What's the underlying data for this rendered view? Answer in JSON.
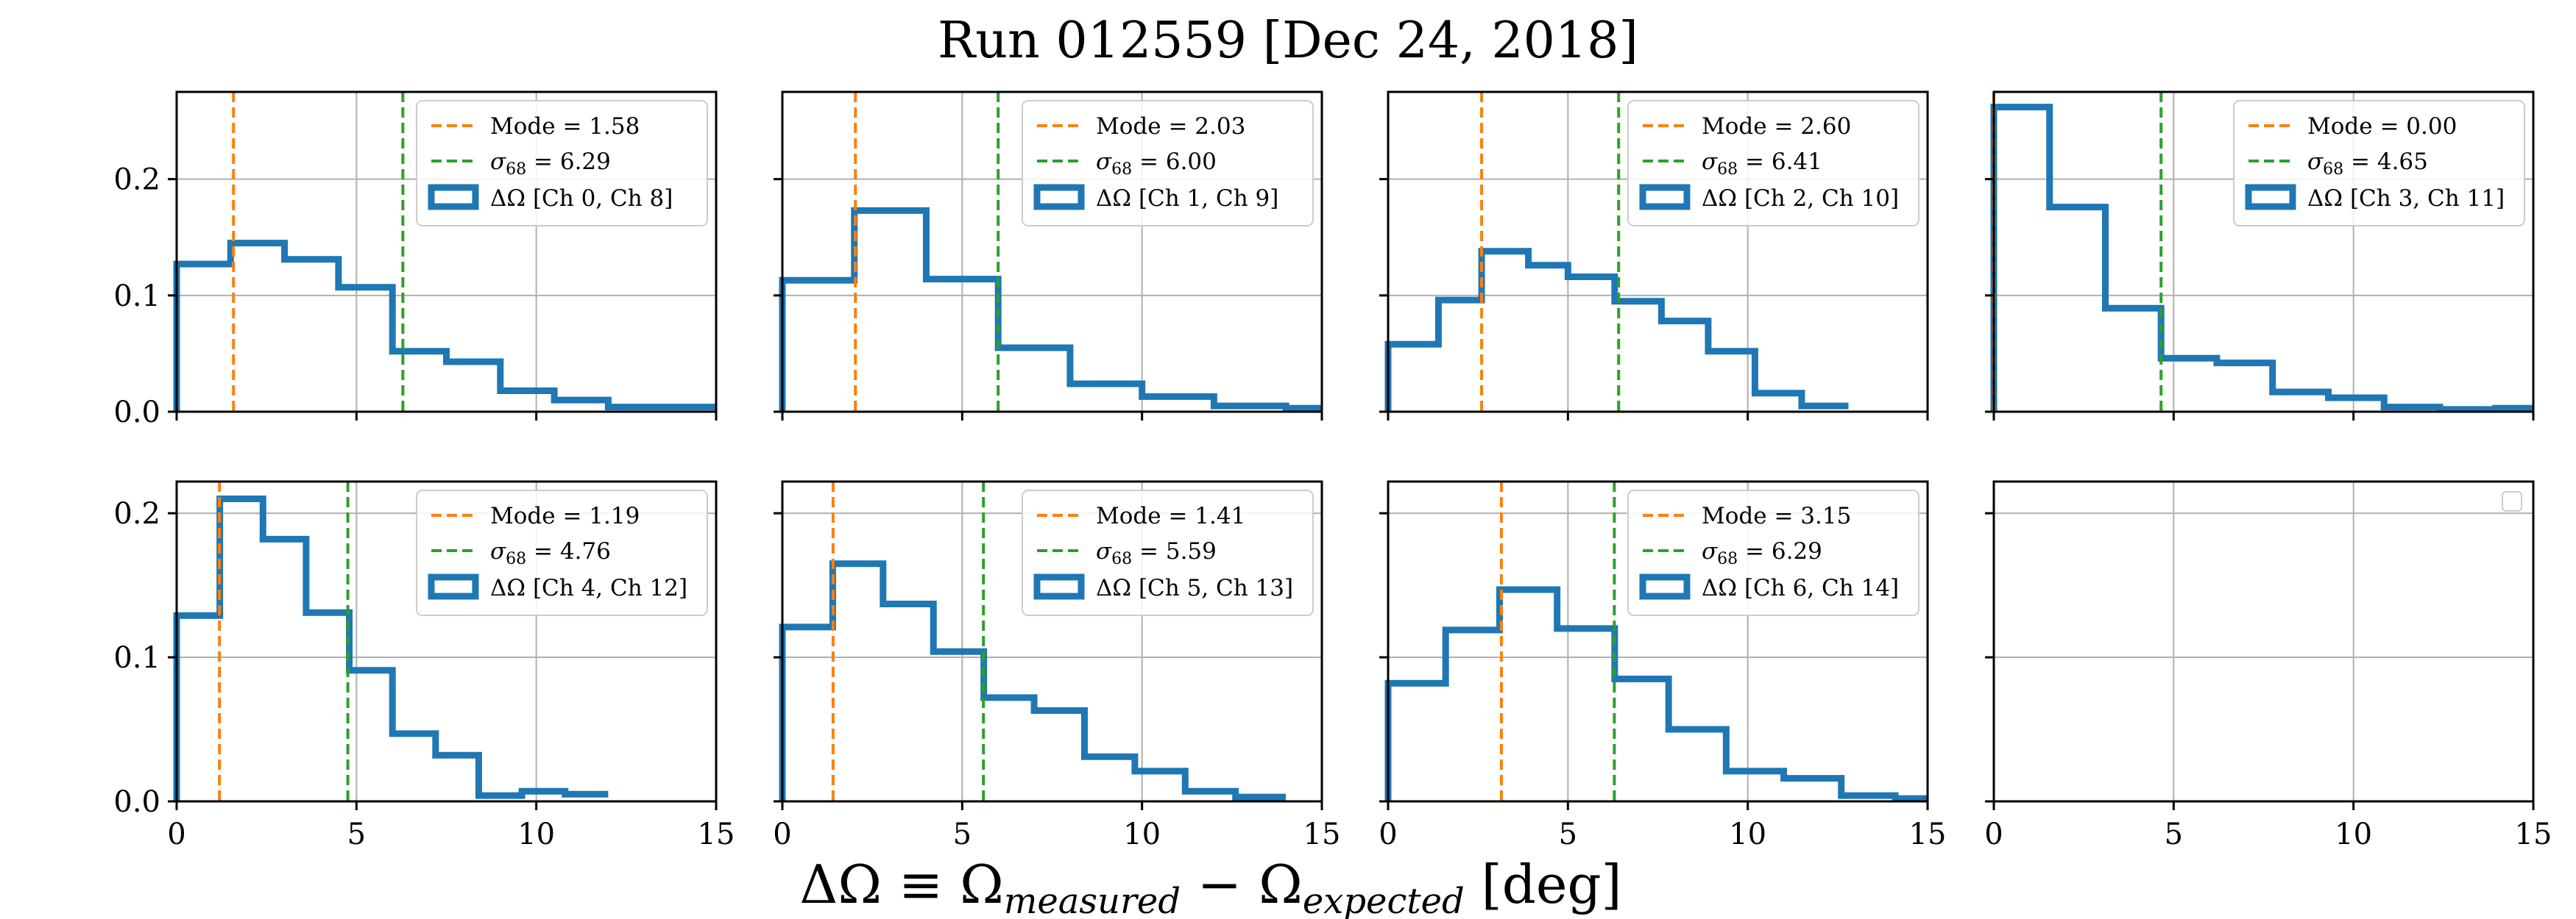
{
  "figure": {
    "title": "Run 012559 [Dec 24, 2018]",
    "xlabel": "ΔΩ ≡ Ω_measured − Ω_expected [deg]",
    "xlabel_parts": {
      "lhs": "ΔΩ ≡ Ω",
      "sub1": "measured",
      "mid": " − Ω",
      "sub2": "expected",
      "unit": " [deg]"
    }
  },
  "colors": {
    "histogram": "#1f77b4",
    "mode_line": "#ff7f0e",
    "sigma_line": "#2ca02c",
    "grid": "#b0b0b0"
  },
  "chart_data": [
    {
      "type": "histogram",
      "row": 0,
      "col": 0,
      "series_name": "ΔΩ [Ch 0, Ch 8]",
      "bin_edges": [
        0,
        1.5,
        3.0,
        4.5,
        6.0,
        7.5,
        9.0,
        10.5,
        12.0,
        13.5,
        15.0
      ],
      "values": [
        0.127,
        0.145,
        0.131,
        0.107,
        0.052,
        0.043,
        0.018,
        0.01,
        0.004,
        0.004
      ],
      "mode": 1.58,
      "sigma68": 6.29,
      "mode_label": "Mode = 1.58",
      "sigma_label": "σ68 = 6.29",
      "xlim": [
        0,
        15
      ],
      "ylim": [
        0,
        0.275
      ],
      "yticks": [
        0.0,
        0.1,
        0.2
      ],
      "ytick_labels": [
        "0.0",
        "0.1",
        "0.2"
      ],
      "xticks": [
        0,
        5,
        10,
        15
      ],
      "xtick_labels": []
    },
    {
      "type": "histogram",
      "row": 0,
      "col": 1,
      "series_name": "ΔΩ [Ch 1, Ch 9]",
      "bin_edges": [
        0,
        2.0,
        4.0,
        6.0,
        8.0,
        10.0,
        12.0,
        14.0,
        15.0
      ],
      "values": [
        0.113,
        0.173,
        0.114,
        0.055,
        0.024,
        0.013,
        0.005,
        0.003
      ],
      "mode": 2.03,
      "sigma68": 6.0,
      "mode_label": "Mode = 2.03",
      "sigma_label": "σ68 = 6.00",
      "xlim": [
        0,
        15
      ],
      "ylim": [
        0,
        0.275
      ],
      "yticks": [
        0.0,
        0.1,
        0.2
      ],
      "ytick_labels": [],
      "xticks": [
        0,
        5,
        10,
        15
      ],
      "xtick_labels": []
    },
    {
      "type": "histogram",
      "row": 0,
      "col": 2,
      "series_name": "ΔΩ [Ch 2, Ch 10]",
      "bin_edges": [
        0,
        1.4,
        2.6,
        3.9,
        5.0,
        6.3,
        7.6,
        8.9,
        10.2,
        11.5,
        12.8
      ],
      "values": [
        0.058,
        0.096,
        0.138,
        0.126,
        0.116,
        0.095,
        0.078,
        0.052,
        0.016,
        0.005
      ],
      "mode": 2.6,
      "sigma68": 6.41,
      "mode_label": "Mode = 2.60",
      "sigma_label": "σ68 = 6.41",
      "xlim": [
        0,
        15
      ],
      "ylim": [
        0,
        0.275
      ],
      "yticks": [
        0.0,
        0.1,
        0.2
      ],
      "ytick_labels": [],
      "xticks": [
        0,
        5,
        10,
        15
      ],
      "xtick_labels": []
    },
    {
      "type": "histogram",
      "row": 0,
      "col": 3,
      "series_name": "ΔΩ [Ch 3, Ch 11]",
      "bin_edges": [
        0,
        1.55,
        3.1,
        4.65,
        6.2,
        7.75,
        9.3,
        10.85,
        12.4,
        13.95,
        15.0
      ],
      "values": [
        0.262,
        0.176,
        0.089,
        0.046,
        0.042,
        0.017,
        0.012,
        0.004,
        0.002,
        0.003
      ],
      "mode": 0.0,
      "sigma68": 4.65,
      "mode_label": "Mode = 0.00",
      "sigma_label": "σ68 = 4.65",
      "xlim": [
        0,
        15
      ],
      "ylim": [
        0,
        0.275
      ],
      "yticks": [
        0.0,
        0.1,
        0.2
      ],
      "ytick_labels": [],
      "xticks": [
        0,
        5,
        10,
        15
      ],
      "xtick_labels": []
    },
    {
      "type": "histogram",
      "row": 1,
      "col": 0,
      "series_name": "ΔΩ [Ch 4, Ch 12]",
      "bin_edges": [
        0,
        1.2,
        2.4,
        3.6,
        4.8,
        6.0,
        7.2,
        8.4,
        9.6,
        10.8,
        12.0
      ],
      "values": [
        0.129,
        0.21,
        0.182,
        0.131,
        0.091,
        0.047,
        0.032,
        0.004,
        0.007,
        0.005
      ],
      "mode": 1.19,
      "sigma68": 4.76,
      "mode_label": "Mode = 1.19",
      "sigma_label": "σ68 = 4.76",
      "xlim": [
        0,
        15
      ],
      "ylim": [
        0,
        0.222
      ],
      "yticks": [
        0.0,
        0.1,
        0.2
      ],
      "ytick_labels": [
        "0.0",
        "0.1",
        "0.2"
      ],
      "xticks": [
        0,
        5,
        10,
        15
      ],
      "xtick_labels": [
        "0",
        "5",
        "10",
        "15"
      ]
    },
    {
      "type": "histogram",
      "row": 1,
      "col": 1,
      "series_name": "ΔΩ [Ch 5, Ch 13]",
      "bin_edges": [
        0,
        1.4,
        2.8,
        4.2,
        5.6,
        7.0,
        8.4,
        9.8,
        11.2,
        12.6,
        14.0
      ],
      "values": [
        0.121,
        0.165,
        0.137,
        0.104,
        0.072,
        0.063,
        0.031,
        0.021,
        0.007,
        0.003
      ],
      "mode": 1.41,
      "sigma68": 5.59,
      "mode_label": "Mode = 1.41",
      "sigma_label": "σ68 = 5.59",
      "xlim": [
        0,
        15
      ],
      "ylim": [
        0,
        0.222
      ],
      "yticks": [
        0.0,
        0.1,
        0.2
      ],
      "ytick_labels": [],
      "xticks": [
        0,
        5,
        10,
        15
      ],
      "xtick_labels": [
        "0",
        "5",
        "10",
        "15"
      ]
    },
    {
      "type": "histogram",
      "row": 1,
      "col": 2,
      "series_name": "ΔΩ [Ch 6, Ch 14]",
      "bin_edges": [
        0,
        1.6,
        3.1,
        4.7,
        6.3,
        7.8,
        9.4,
        11.0,
        12.6,
        14.1,
        15.0
      ],
      "values": [
        0.082,
        0.119,
        0.147,
        0.12,
        0.085,
        0.05,
        0.021,
        0.016,
        0.004,
        0.002
      ],
      "mode": 3.15,
      "sigma68": 6.29,
      "mode_label": "Mode = 3.15",
      "sigma_label": "σ68 = 6.29",
      "xlim": [
        0,
        15
      ],
      "ylim": [
        0,
        0.222
      ],
      "yticks": [
        0.0,
        0.1,
        0.2
      ],
      "ytick_labels": [],
      "xticks": [
        0,
        5,
        10,
        15
      ],
      "xtick_labels": [
        "0",
        "5",
        "10",
        "15"
      ]
    },
    {
      "type": "histogram",
      "row": 1,
      "col": 3,
      "empty": true,
      "xlim": [
        0,
        15
      ],
      "ylim": [
        0,
        0.222
      ],
      "yticks": [
        0.0,
        0.1,
        0.2
      ],
      "ytick_labels": [],
      "xticks": [
        0,
        5,
        10,
        15
      ],
      "xtick_labels": [
        "0",
        "5",
        "10",
        "15"
      ]
    }
  ]
}
